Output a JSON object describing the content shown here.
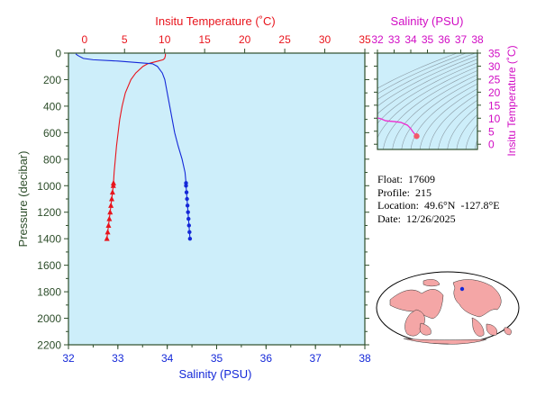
{
  "colors": {
    "plot_bg": "#cdeefa",
    "axis_dark": "#2d4d2a",
    "temperature": "#e8141c",
    "salinity": "#1428d8",
    "ts_accent": "#ee2ccf",
    "ts_point": "#f25a6a",
    "density_contours": "#7f8c95",
    "land": "#f4a6a6",
    "ocean": "#ffffff"
  },
  "info": {
    "float_label": "Float:",
    "float_value": "17609",
    "profile_label": "Profile:",
    "profile_value": "215",
    "location_label": "Location:",
    "location_value": "49.6°N  -127.8°E",
    "date_label": "Date:",
    "date_value": "12/26/2025"
  },
  "map": {
    "icons": [
      "world-map-icon"
    ],
    "marker": {
      "lon": -127.8,
      "lat": 49.6
    }
  },
  "chart_data": [
    {
      "type": "line",
      "y_axis": {
        "label": "Pressure (decibar)",
        "range": [
          0,
          2200
        ],
        "ticks": [
          0,
          200,
          400,
          600,
          800,
          1000,
          1200,
          1400,
          1600,
          1800,
          2000,
          2200
        ],
        "inverted": true
      },
      "x_axis_top": {
        "label": "Insitu Temperature (˚C)",
        "range": [
          -2,
          35
        ],
        "ticks": [
          0,
          5,
          10,
          15,
          20,
          25,
          30,
          35
        ]
      },
      "x_axis_bottom": {
        "label": "Salinity (PSU)",
        "range": [
          32,
          38
        ],
        "ticks": [
          32,
          33,
          34,
          35,
          36,
          37,
          38
        ]
      },
      "temperature": {
        "pressure": [
          5,
          10,
          20,
          40,
          50,
          60,
          80,
          100,
          150,
          200,
          300,
          400,
          500,
          600,
          700,
          800,
          900,
          980,
          1000,
          1050,
          1100,
          1150,
          1200,
          1250,
          1300,
          1350,
          1400
        ],
        "values": [
          10.1,
          10.1,
          10.1,
          10.0,
          9.8,
          9.2,
          7.9,
          7.3,
          6.4,
          5.8,
          5.1,
          4.7,
          4.4,
          4.2,
          4.0,
          3.85,
          3.7,
          3.62,
          3.6,
          3.5,
          3.4,
          3.3,
          3.2,
          3.1,
          3.0,
          2.9,
          2.8
        ],
        "marker_start_index": 17
      },
      "salinity": {
        "pressure": [
          5,
          10,
          20,
          40,
          50,
          60,
          80,
          100,
          150,
          200,
          300,
          400,
          500,
          600,
          700,
          800,
          900,
          980,
          1000,
          1050,
          1100,
          1150,
          1200,
          1250,
          1300,
          1350,
          1400
        ],
        "values": [
          32.15,
          32.16,
          32.2,
          32.3,
          32.5,
          33.0,
          33.7,
          33.8,
          33.9,
          33.95,
          34.0,
          34.05,
          34.1,
          34.15,
          34.22,
          34.3,
          34.36,
          34.38,
          34.38,
          34.39,
          34.4,
          34.41,
          34.42,
          34.43,
          34.44,
          34.45,
          34.46
        ],
        "marker_start_index": 17
      }
    },
    {
      "type": "line",
      "title": "Salinity (PSU)",
      "x_axis": {
        "label": "Salinity (PSU)",
        "range": [
          32,
          38
        ],
        "ticks": [
          32,
          33,
          34,
          35,
          36,
          37,
          38
        ]
      },
      "y_axis": {
        "label": "Insitu Temperature (˚C)",
        "range": [
          -2,
          35
        ],
        "ticks": [
          0,
          5,
          10,
          15,
          20,
          25,
          30,
          35
        ]
      },
      "series": [
        {
          "x": [
            32.0,
            32.2,
            32.5,
            33.0,
            33.4,
            33.8,
            34.0,
            34.1,
            34.2,
            34.35
          ],
          "y": [
            10.1,
            9.8,
            9.0,
            8.7,
            8.4,
            7.3,
            6.0,
            5.0,
            4.2,
            3.1
          ]
        }
      ],
      "highlight_point": {
        "x": 34.35,
        "y": 3.1
      }
    }
  ]
}
